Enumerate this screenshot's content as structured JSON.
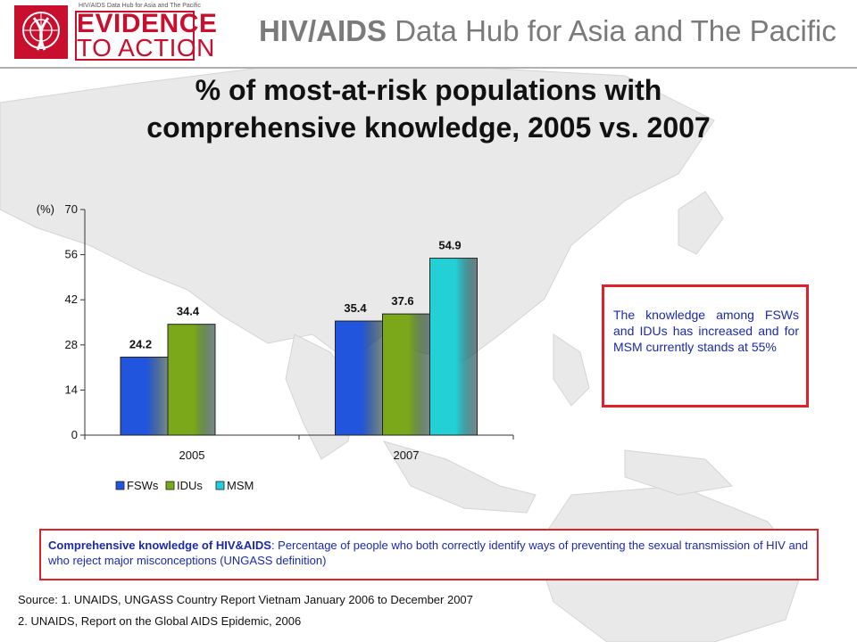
{
  "header": {
    "logo_small_text": "HIV/AIDS Data Hub for Asia and The Pacific",
    "logo_line1": "EVIDENCE",
    "logo_line2": "TO ACTION",
    "title_bold": "HIV/AIDS",
    "title_rest": " Data Hub for Asia and The Pacific"
  },
  "title_line1": "% of most-at-risk populations with",
  "title_line2": "comprehensive knowledge, 2005 vs. 2007",
  "chart_data": {
    "type": "bar",
    "categories": [
      "2005",
      "2007"
    ],
    "series": [
      {
        "name": "FSWs",
        "values": [
          24.2,
          35.4
        ],
        "color": "#2255dd"
      },
      {
        "name": "IDUs",
        "values": [
          34.4,
          37.6
        ],
        "color": "#7aa81a"
      },
      {
        "name": "MSM",
        "values": [
          null,
          54.9
        ],
        "color": "#22d0d6"
      }
    ],
    "ylabel": "(%)",
    "ylim": [
      0,
      70
    ],
    "yticks": [
      0,
      14,
      28,
      42,
      56,
      70
    ],
    "data_labels": [
      [
        "24.2",
        "35.4"
      ],
      [
        "34.4",
        "37.6"
      ],
      [
        "",
        "54.9"
      ]
    ],
    "legend_position": "bottom"
  },
  "callout": "The knowledge among FSWs and IDUs has increased and for MSM currently stands at 55%",
  "definition": {
    "term": "Comprehensive knowledge of HIV&AIDS",
    "text": ": Percentage of people who both correctly identify ways of preventing the sexual transmission of HIV and who reject major misconceptions (UNGASS definition)"
  },
  "source1": "Source: 1. UNAIDS, UNGASS Country Report Vietnam January 2006 to December 2007",
  "source2": "2. UNAIDS, Report on the Global AIDS Epidemic, 2006",
  "colors": {
    "brand_red": "#c8102e",
    "callout_border": "#e0202a",
    "callout_text": "#1a2aa8",
    "map": "#e6e6e6"
  },
  "icons": {
    "logo": "un-emblem-ribbon-icon"
  }
}
